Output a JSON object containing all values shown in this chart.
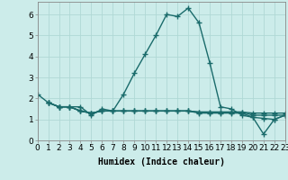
{
  "xlabel": "Humidex (Indice chaleur)",
  "bg_color": "#ccecea",
  "line_color": "#1a6b6b",
  "grid_color": "#b0d8d5",
  "series": [
    {
      "x": [
        0,
        1,
        2,
        3,
        4,
        5,
        6,
        7,
        8,
        9,
        10,
        11,
        12,
        13,
        14,
        15,
        16,
        17,
        18,
        19,
        20,
        21,
        22,
        23
      ],
      "y": [
        2.2,
        1.8,
        1.6,
        1.6,
        1.6,
        1.2,
        1.5,
        1.4,
        2.2,
        3.2,
        4.1,
        5.0,
        6.0,
        5.9,
        6.3,
        5.6,
        3.7,
        1.6,
        1.5,
        1.2,
        1.1,
        0.3,
        1.0,
        1.2
      ]
    },
    {
      "x": [
        1,
        2,
        3,
        4,
        5,
        6,
        7,
        8,
        9,
        10,
        11,
        12,
        13,
        14,
        15,
        16,
        17,
        18,
        19,
        20,
        21,
        22,
        23
      ],
      "y": [
        1.8,
        1.6,
        1.6,
        1.4,
        1.3,
        1.4,
        1.4,
        1.4,
        1.4,
        1.4,
        1.4,
        1.4,
        1.4,
        1.4,
        1.35,
        1.35,
        1.35,
        1.35,
        1.35,
        1.3,
        1.3,
        1.3,
        1.3
      ]
    },
    {
      "x": [
        1,
        2,
        3,
        4,
        5,
        6,
        7,
        8,
        9,
        10,
        11,
        12,
        13,
        14,
        15,
        16,
        17,
        18,
        19,
        20,
        21,
        22,
        23
      ],
      "y": [
        1.8,
        1.6,
        1.6,
        1.4,
        1.3,
        1.4,
        1.4,
        1.4,
        1.4,
        1.4,
        1.4,
        1.4,
        1.4,
        1.4,
        1.3,
        1.3,
        1.3,
        1.3,
        1.3,
        1.1,
        1.05,
        1.0,
        1.2
      ]
    },
    {
      "x": [
        1,
        2,
        3,
        4,
        5,
        6,
        7,
        8,
        9,
        10,
        11,
        12,
        13,
        14,
        15,
        16,
        17,
        18,
        19,
        20,
        21,
        22,
        23
      ],
      "y": [
        1.8,
        1.6,
        1.6,
        1.4,
        1.3,
        1.4,
        1.4,
        1.4,
        1.4,
        1.4,
        1.4,
        1.4,
        1.4,
        1.4,
        1.35,
        1.35,
        1.35,
        1.35,
        1.35,
        1.2,
        1.2,
        1.2,
        1.2
      ]
    }
  ],
  "xlim": [
    0,
    23
  ],
  "ylim": [
    0,
    6.6
  ],
  "yticks": [
    0,
    1,
    2,
    3,
    4,
    5,
    6
  ],
  "xticks": [
    0,
    1,
    2,
    3,
    4,
    5,
    6,
    7,
    8,
    9,
    10,
    11,
    12,
    13,
    14,
    15,
    16,
    17,
    18,
    19,
    20,
    21,
    22,
    23
  ],
  "xtick_labels": [
    "0",
    "1",
    "2",
    "3",
    "4",
    "5",
    "6",
    "7",
    "8",
    "9",
    "10",
    "11",
    "12",
    "13",
    "14",
    "15",
    "16",
    "17",
    "18",
    "19",
    "20",
    "21",
    "22",
    "23"
  ],
  "marker": "+",
  "markersize": 4,
  "linewidth": 1.0,
  "xlabel_fontsize": 7,
  "tick_fontsize": 6.5
}
